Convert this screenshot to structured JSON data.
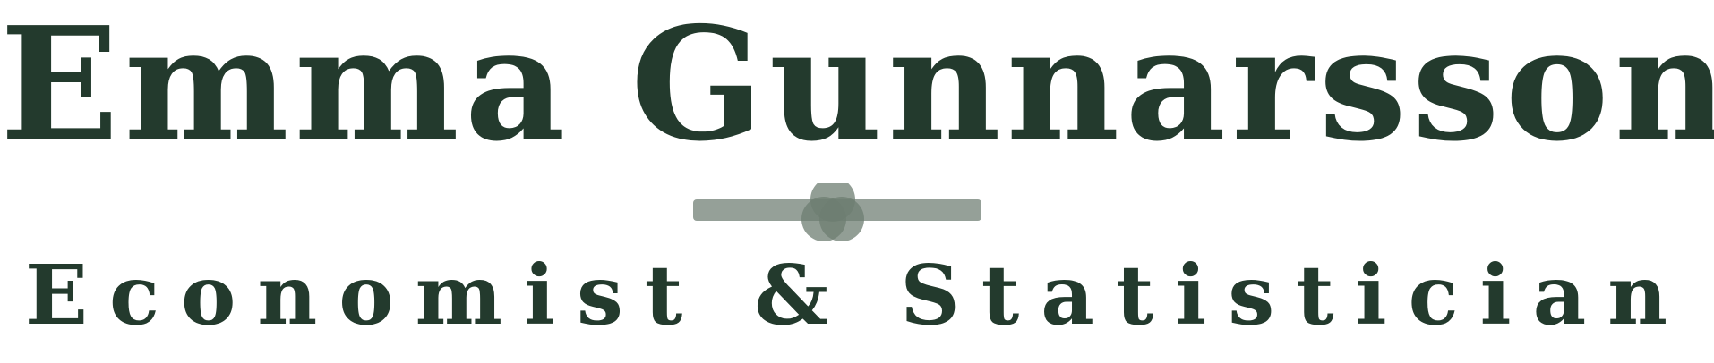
{
  "logo": {
    "name": "Emma Gunnarsson",
    "title": "Economist & Statistician"
  },
  "colors": {
    "ink": "#233a2d",
    "divider_bar": "#8f9b92",
    "divider_circles": "#6e7d72",
    "background": "#ffffff"
  },
  "icons": {
    "divider": "bar-with-overlapping-circles-icon"
  }
}
